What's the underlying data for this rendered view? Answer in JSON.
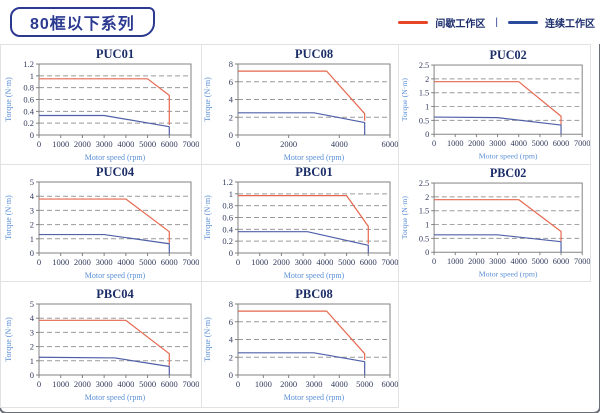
{
  "header": {
    "badge": "80框以下系列",
    "legend": {
      "items": [
        {
          "label": "间歇工作区",
          "color": "#e84527"
        },
        {
          "label": "连续工作区",
          "color": "#2b4a9b"
        }
      ],
      "separator": "|"
    }
  },
  "chart_data": [
    {
      "type": "line",
      "title": "PUC01",
      "xlabel": "Motor speed (rpm)",
      "ylabel": "Torque (N·m)",
      "xlim": [
        0,
        7000
      ],
      "ylim": [
        0,
        1.2
      ],
      "xticks": [
        0,
        1000,
        2000,
        3000,
        4000,
        5000,
        6000,
        7000
      ],
      "yticks": [
        0,
        0.2,
        0.4,
        0.6,
        0.8,
        1,
        1.2
      ],
      "grid": "horizontal-dashed",
      "legend_position": "none",
      "series": [
        {
          "name": "间歇工作区",
          "color": "#e5674f",
          "points": [
            [
              0,
              0.95
            ],
            [
              5000,
              0.95
            ],
            [
              6000,
              0.67
            ],
            [
              6000,
              0.17
            ]
          ]
        },
        {
          "name": "连续工作区",
          "color": "#5060a8",
          "points": [
            [
              0,
              0.33
            ],
            [
              3000,
              0.33
            ],
            [
              6000,
              0.14
            ],
            [
              6000,
              0
            ]
          ]
        }
      ]
    },
    {
      "type": "line",
      "title": "PUC08",
      "xlabel": "Motor speed (rpm)",
      "ylabel": "Torque (N·m)",
      "xlim": [
        0,
        6000
      ],
      "ylim": [
        0,
        8
      ],
      "xticks": [
        0,
        2000,
        4000,
        6000
      ],
      "yticks": [
        0,
        2,
        4,
        6,
        8
      ],
      "grid": "horizontal-dashed",
      "legend_position": "none",
      "series": [
        {
          "name": "间歇工作区",
          "color": "#e5674f",
          "points": [
            [
              0,
              7.2
            ],
            [
              3500,
              7.2
            ],
            [
              5000,
              2.4
            ],
            [
              5000,
              1.6
            ]
          ]
        },
        {
          "name": "连续工作区",
          "color": "#5060a8",
          "points": [
            [
              0,
              2.5
            ],
            [
              3000,
              2.5
            ],
            [
              5000,
              1.4
            ],
            [
              5000,
              0
            ]
          ]
        }
      ]
    },
    {
      "type": "line",
      "title": "PUC02",
      "xlabel": "Motor speed (rpm)",
      "ylabel": "Torque (N·m)",
      "xlim": [
        0,
        7000
      ],
      "ylim": [
        0,
        2.5
      ],
      "xticks": [
        0,
        1000,
        2000,
        3000,
        4000,
        5000,
        6000,
        7000
      ],
      "yticks": [
        0,
        0.5,
        1,
        1.5,
        2,
        2.5
      ],
      "grid": "horizontal-dashed",
      "legend_position": "none",
      "series": [
        {
          "name": "间歇工作区",
          "color": "#e5674f",
          "points": [
            [
              0,
              1.9
            ],
            [
              4000,
              1.9
            ],
            [
              6000,
              0.65
            ],
            [
              6000,
              0.35
            ]
          ]
        },
        {
          "name": "连续工作区",
          "color": "#5060a8",
          "points": [
            [
              0,
              0.62
            ],
            [
              3000,
              0.6
            ],
            [
              6000,
              0.33
            ],
            [
              6000,
              0
            ]
          ]
        }
      ]
    },
    {
      "type": "line",
      "title": "PUC04",
      "xlabel": "Motor speed (rpm)",
      "ylabel": "Torque (N·m)",
      "xlim": [
        0,
        7000
      ],
      "ylim": [
        0,
        5
      ],
      "xticks": [
        0,
        1000,
        2000,
        3000,
        4000,
        5000,
        6000,
        7000
      ],
      "yticks": [
        0,
        1,
        2,
        3,
        4,
        5
      ],
      "grid": "horizontal-dashed",
      "legend_position": "none",
      "series": [
        {
          "name": "间歇工作区",
          "color": "#e5674f",
          "points": [
            [
              0,
              3.8
            ],
            [
              4000,
              3.8
            ],
            [
              6000,
              1.5
            ],
            [
              6000,
              0.7
            ]
          ]
        },
        {
          "name": "连续工作区",
          "color": "#5060a8",
          "points": [
            [
              0,
              1.3
            ],
            [
              3000,
              1.3
            ],
            [
              6000,
              0.65
            ],
            [
              6000,
              0
            ]
          ]
        }
      ]
    },
    {
      "type": "line",
      "title": "PBC01",
      "xlabel": "Motor speed (rpm)",
      "ylabel": "Torque (N·m)",
      "xlim": [
        0,
        7000
      ],
      "ylim": [
        0,
        1.2
      ],
      "xticks": [
        0,
        1000,
        2000,
        3000,
        4000,
        5000,
        6000,
        7000
      ],
      "yticks": [
        0,
        0.2,
        0.4,
        0.6,
        0.8,
        1,
        1.2
      ],
      "grid": "horizontal-dashed",
      "legend_position": "none",
      "series": [
        {
          "name": "间歇工作区",
          "color": "#e5674f",
          "points": [
            [
              0,
              0.97
            ],
            [
              5000,
              0.97
            ],
            [
              6000,
              0.45
            ],
            [
              6000,
              0.15
            ]
          ]
        },
        {
          "name": "连续工作区",
          "color": "#5060a8",
          "points": [
            [
              0,
              0.36
            ],
            [
              3200,
              0.36
            ],
            [
              6000,
              0.13
            ],
            [
              6000,
              0
            ]
          ]
        }
      ]
    },
    {
      "type": "line",
      "title": "PBC02",
      "xlabel": "Motor speed (rpm)",
      "ylabel": "Torque (N·m)",
      "xlim": [
        0,
        7000
      ],
      "ylim": [
        0,
        2.5
      ],
      "xticks": [
        0,
        1000,
        2000,
        3000,
        4000,
        5000,
        6000,
        7000
      ],
      "yticks": [
        0,
        0.5,
        1,
        1.5,
        2,
        2.5
      ],
      "grid": "horizontal-dashed",
      "legend_position": "none",
      "series": [
        {
          "name": "间歇工作区",
          "color": "#e5674f",
          "points": [
            [
              0,
              1.9
            ],
            [
              4000,
              1.9
            ],
            [
              6000,
              0.75
            ],
            [
              6000,
              0.4
            ]
          ]
        },
        {
          "name": "连续工作区",
          "color": "#5060a8",
          "points": [
            [
              0,
              0.63
            ],
            [
              3000,
              0.63
            ],
            [
              6000,
              0.38
            ],
            [
              6000,
              0
            ]
          ]
        }
      ]
    },
    {
      "type": "line",
      "title": "PBC04",
      "xlabel": "Motor speed (rpm)",
      "ylabel": "Torque (N·m)",
      "xlim": [
        0,
        7000
      ],
      "ylim": [
        0,
        5
      ],
      "xticks": [
        0,
        1000,
        2000,
        3000,
        4000,
        5000,
        6000,
        7000
      ],
      "yticks": [
        0,
        1,
        2,
        3,
        4,
        5
      ],
      "grid": "horizontal-dashed",
      "legend_position": "none",
      "series": [
        {
          "name": "间歇工作区",
          "color": "#e5674f",
          "points": [
            [
              0,
              3.85
            ],
            [
              4000,
              3.85
            ],
            [
              6000,
              1.5
            ],
            [
              6000,
              0.65
            ]
          ]
        },
        {
          "name": "连续工作区",
          "color": "#5060a8",
          "points": [
            [
              0,
              1.25
            ],
            [
              3500,
              1.2
            ],
            [
              6000,
              0.6
            ],
            [
              6000,
              0
            ]
          ]
        }
      ]
    },
    {
      "type": "line",
      "title": "PBC08",
      "xlabel": "Motor speed (rpm)",
      "ylabel": "Torque (N·m)",
      "xlim": [
        0,
        6000
      ],
      "ylim": [
        0,
        8
      ],
      "xticks": [
        0,
        1000,
        2000,
        3000,
        4000,
        5000,
        6000
      ],
      "yticks": [
        0,
        2,
        4,
        6,
        8
      ],
      "grid": "horizontal-dashed",
      "legend_position": "none",
      "series": [
        {
          "name": "间歇工作区",
          "color": "#e5674f",
          "points": [
            [
              0,
              7.2
            ],
            [
              3500,
              7.2
            ],
            [
              5000,
              2.4
            ],
            [
              5000,
              1.7
            ]
          ]
        },
        {
          "name": "连续工作区",
          "color": "#5060a8",
          "points": [
            [
              0,
              2.5
            ],
            [
              3000,
              2.5
            ],
            [
              5000,
              1.5
            ],
            [
              5000,
              0
            ]
          ]
        }
      ]
    }
  ]
}
